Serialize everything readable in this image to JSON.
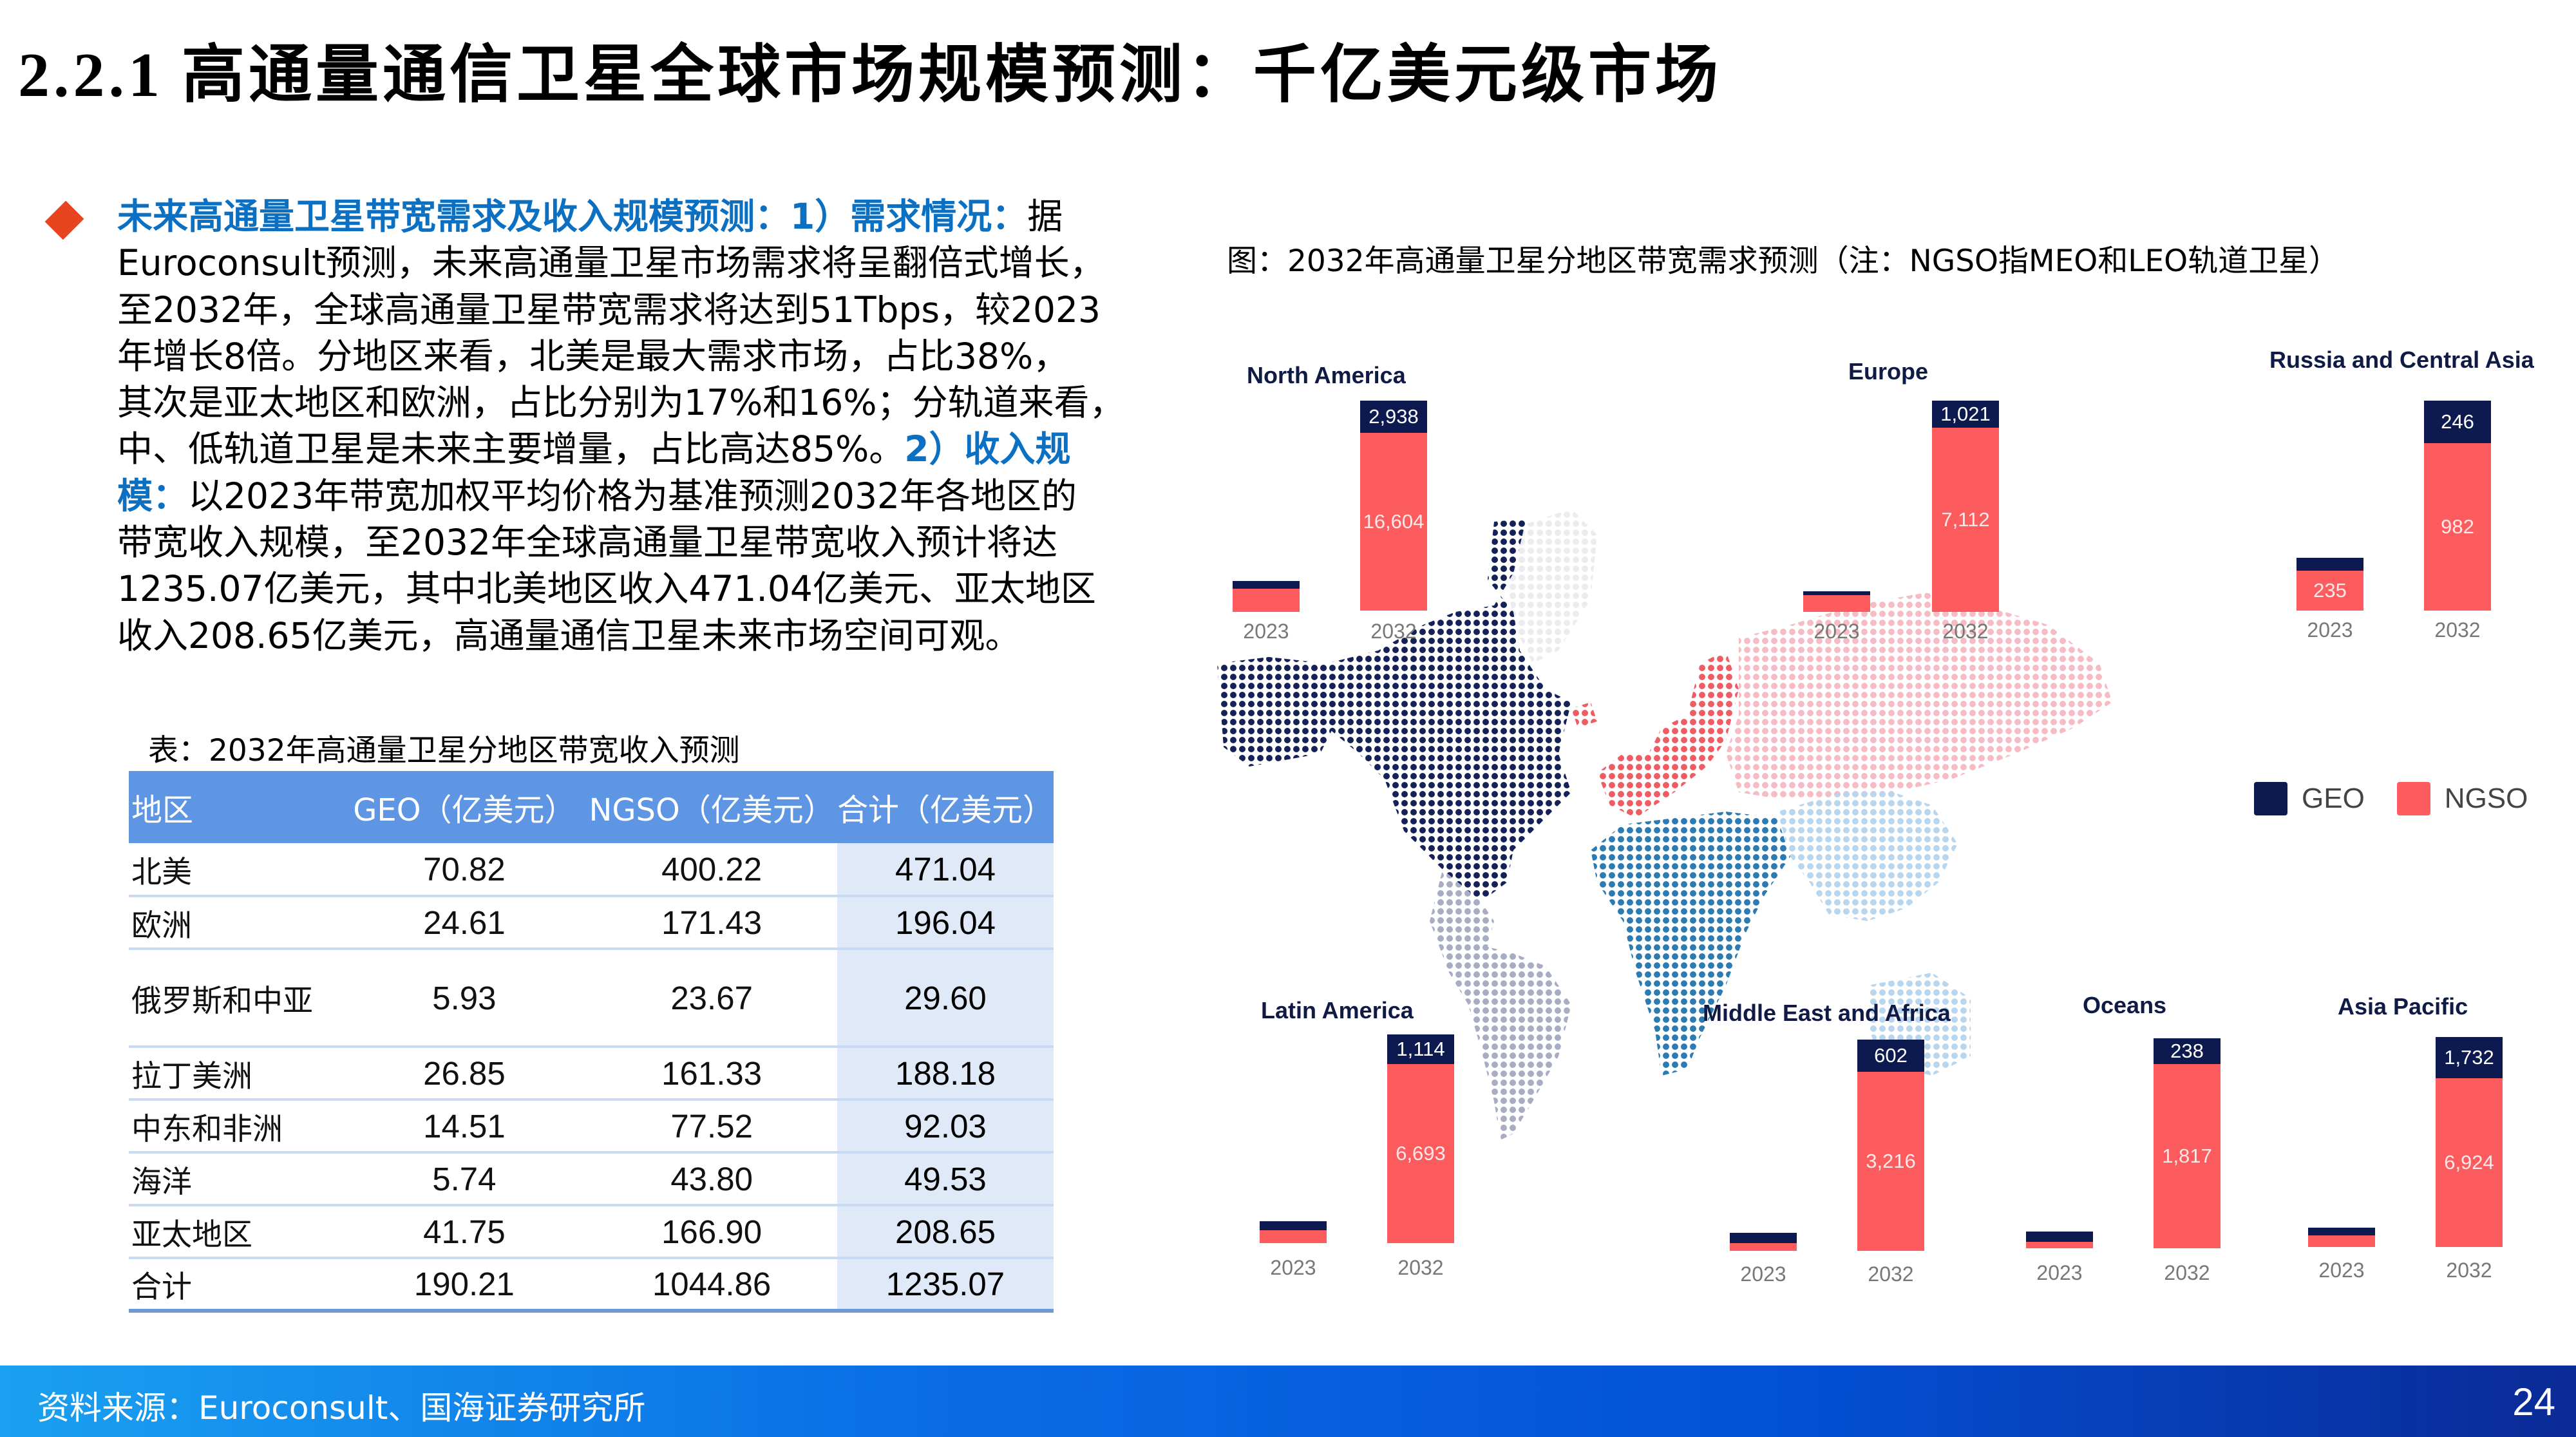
{
  "header": {
    "section_number": "2.2.1",
    "title": "高通量通信卫星全球市场规模预测：千亿美元级市场"
  },
  "bullet": {
    "lines": [
      [
        {
          "t": "未来高通量卫星带宽需求及收入规模预测：1）需求情况：",
          "hl": true
        },
        {
          "t": "据",
          "hl": false
        }
      ],
      [
        {
          "t": "Euroconsult预测，未来高通量卫星市场需求将呈翻倍式增长，",
          "hl": false
        }
      ],
      [
        {
          "t": "至2032年，全球高通量卫星带宽需求将达到51Tbps，较2023",
          "hl": false
        }
      ],
      [
        {
          "t": "年增长8倍。分地区来看，北美是最大需求市场，占比38%，",
          "hl": false
        }
      ],
      [
        {
          "t": "其次是亚太地区和欧洲，占比分别为17%和16%；分轨道来看，",
          "hl": false
        }
      ],
      [
        {
          "t": "中、低轨道卫星是未来主要增量，占比高达85%。",
          "hl": false
        },
        {
          "t": "2）收入规",
          "hl": true
        }
      ],
      [
        {
          "t": "模：",
          "hl": true
        },
        {
          "t": "以2023年带宽加权平均价格为基准预测2032年各地区的",
          "hl": false
        }
      ],
      [
        {
          "t": "带宽收入规模，至2032年全球高通量卫星带宽收入预计将达",
          "hl": false
        }
      ],
      [
        {
          "t": "1235.07亿美元，其中北美地区收入471.04亿美元、亚太地区",
          "hl": false
        }
      ],
      [
        {
          "t": "收入208.65亿美元，高通量通信卫星未来市场空间可观。",
          "hl": false
        }
      ]
    ]
  },
  "table": {
    "caption": "表：2032年高通量卫星分地区带宽收入预测",
    "headers": [
      "地区",
      "GEO（亿美元）",
      "NGSO（亿美元）",
      "合计（亿美元）"
    ],
    "rows": [
      [
        "北美",
        "70.82",
        "400.22",
        "471.04"
      ],
      [
        "欧洲",
        "24.61",
        "171.43",
        "196.04"
      ],
      [
        "俄罗斯和中亚",
        "5.93",
        "23.67",
        "29.60"
      ],
      [
        "拉丁美洲",
        "26.85",
        "161.33",
        "188.18"
      ],
      [
        "中东和非洲",
        "14.51",
        "77.52",
        "92.03"
      ],
      [
        "海洋",
        "5.74",
        "43.80",
        "49.53"
      ],
      [
        "亚太地区",
        "41.75",
        "166.90",
        "208.65"
      ],
      [
        "合计",
        "190.21",
        "1044.86",
        "1235.07"
      ]
    ]
  },
  "figure": {
    "caption": "图：2032年高通量卫星分地区带宽需求预测（注：NGSO指MEO和LEO轨道卫星）"
  },
  "colors": {
    "geo": "#0d1a4f",
    "ngso": "#fd5c5f",
    "accent_blue": "#0b6fc2",
    "bullet_orange": "#e8441f",
    "table_header": "#5e96e3"
  },
  "chart_data": {
    "type": "bar",
    "title": "2032年高通量卫星分地区带宽需求预测（注：NGSO指MEO和LEO轨道卫星）",
    "stacked": true,
    "categories": [
      "2023",
      "2032"
    ],
    "legend": [
      "GEO",
      "NGSO"
    ],
    "legend_position": "right-middle",
    "grid": false,
    "panels": [
      {
        "region": "North America",
        "series": [
          {
            "name": "GEO",
            "values": [
              null,
              2938
            ]
          },
          {
            "name": "NGSO",
            "values": [
              null,
              16604
            ]
          }
        ]
      },
      {
        "region": "Europe",
        "series": [
          {
            "name": "GEO",
            "values": [
              null,
              1021
            ]
          },
          {
            "name": "NGSO",
            "values": [
              null,
              7112
            ]
          }
        ]
      },
      {
        "region": "Russia and Central Asia",
        "series": [
          {
            "name": "GEO",
            "values": [
              null,
              246
            ]
          },
          {
            "name": "NGSO",
            "values": [
              235,
              982
            ]
          }
        ]
      },
      {
        "region": "Latin America",
        "series": [
          {
            "name": "GEO",
            "values": [
              null,
              1114
            ]
          },
          {
            "name": "NGSO",
            "values": [
              null,
              6693
            ]
          }
        ]
      },
      {
        "region": "Middle East and Africa",
        "series": [
          {
            "name": "GEO",
            "values": [
              null,
              602
            ]
          },
          {
            "name": "NGSO",
            "values": [
              null,
              3216
            ]
          }
        ]
      },
      {
        "region": "Oceans",
        "series": [
          {
            "name": "GEO",
            "values": [
              null,
              238
            ]
          },
          {
            "name": "NGSO",
            "values": [
              null,
              1817
            ]
          }
        ]
      },
      {
        "region": "Asia Pacific",
        "series": [
          {
            "name": "GEO",
            "values": [
              null,
              1732
            ]
          },
          {
            "name": "NGSO",
            "values": [
              null,
              6924
            ]
          }
        ]
      }
    ]
  },
  "chart_labels": {
    "na": {
      "title": "North America",
      "geo": "2,938",
      "ngso": "16,604"
    },
    "eu": {
      "title": "Europe",
      "geo": "1,021",
      "ngso": "7,112"
    },
    "rca": {
      "title": "Russia and Central Asia",
      "geo": "246",
      "ngso": "982",
      "ngso_2023": "235"
    },
    "la": {
      "title": "Latin America",
      "geo": "1,114",
      "ngso": "6,693"
    },
    "mea": {
      "title": "Middle East and Africa",
      "geo": "602",
      "ngso": "3,216"
    },
    "oc": {
      "title": "Oceans",
      "geo": "238",
      "ngso": "1,817"
    },
    "ap": {
      "title": "Asia Pacific",
      "geo": "1,732",
      "ngso": "6,924"
    },
    "year_a": "2023",
    "year_b": "2032",
    "legend_geo": "GEO",
    "legend_ngso": "NGSO"
  },
  "footer": {
    "source": "资料来源：Euroconsult、国海证券研究所",
    "page_number": "24"
  }
}
